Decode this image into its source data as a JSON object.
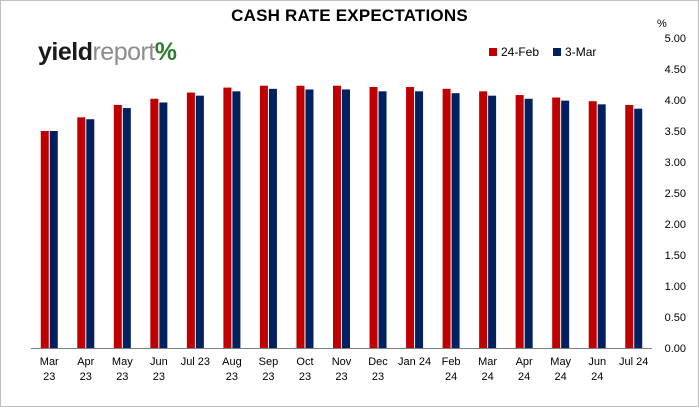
{
  "chart_data": {
    "type": "bar",
    "title": "CASH RATE EXPECTATIONS",
    "y_unit": "%",
    "categories": [
      [
        "Mar",
        "23"
      ],
      [
        "Apr",
        "23"
      ],
      [
        "May",
        "23"
      ],
      [
        "Jun",
        "23"
      ],
      [
        "Jul 23",
        ""
      ],
      [
        "Aug",
        "23"
      ],
      [
        "Sep",
        "23"
      ],
      [
        "Oct",
        "23"
      ],
      [
        "Nov",
        "23"
      ],
      [
        "Dec",
        "23"
      ],
      [
        "Jan 24",
        ""
      ],
      [
        "Feb",
        "24"
      ],
      [
        "Mar",
        "24"
      ],
      [
        "Apr",
        "24"
      ],
      [
        "May",
        "24"
      ],
      [
        "Jun",
        "24"
      ],
      [
        "Jul 24",
        ""
      ]
    ],
    "series": [
      {
        "name": "24-Feb",
        "color": "#c00000",
        "values": [
          3.5,
          3.72,
          3.92,
          4.02,
          4.12,
          4.2,
          4.23,
          4.23,
          4.23,
          4.21,
          4.21,
          4.18,
          4.14,
          4.08,
          4.04,
          3.98,
          3.92
        ]
      },
      {
        "name": "3-Mar",
        "color": "#002060",
        "values": [
          3.5,
          3.69,
          3.87,
          3.96,
          4.07,
          4.14,
          4.18,
          4.17,
          4.17,
          4.14,
          4.14,
          4.11,
          4.07,
          4.02,
          3.99,
          3.93,
          3.86
        ]
      }
    ],
    "ylim": [
      0,
      5
    ],
    "yticks": [
      "0.00",
      "0.50",
      "1.00",
      "1.50",
      "2.00",
      "2.50",
      "3.00",
      "3.50",
      "4.00",
      "4.50",
      "5.00"
    ],
    "legend_position": "top-right",
    "grid": false
  },
  "logo": {
    "part1": "yield",
    "part2": "report",
    "part3": "%"
  }
}
